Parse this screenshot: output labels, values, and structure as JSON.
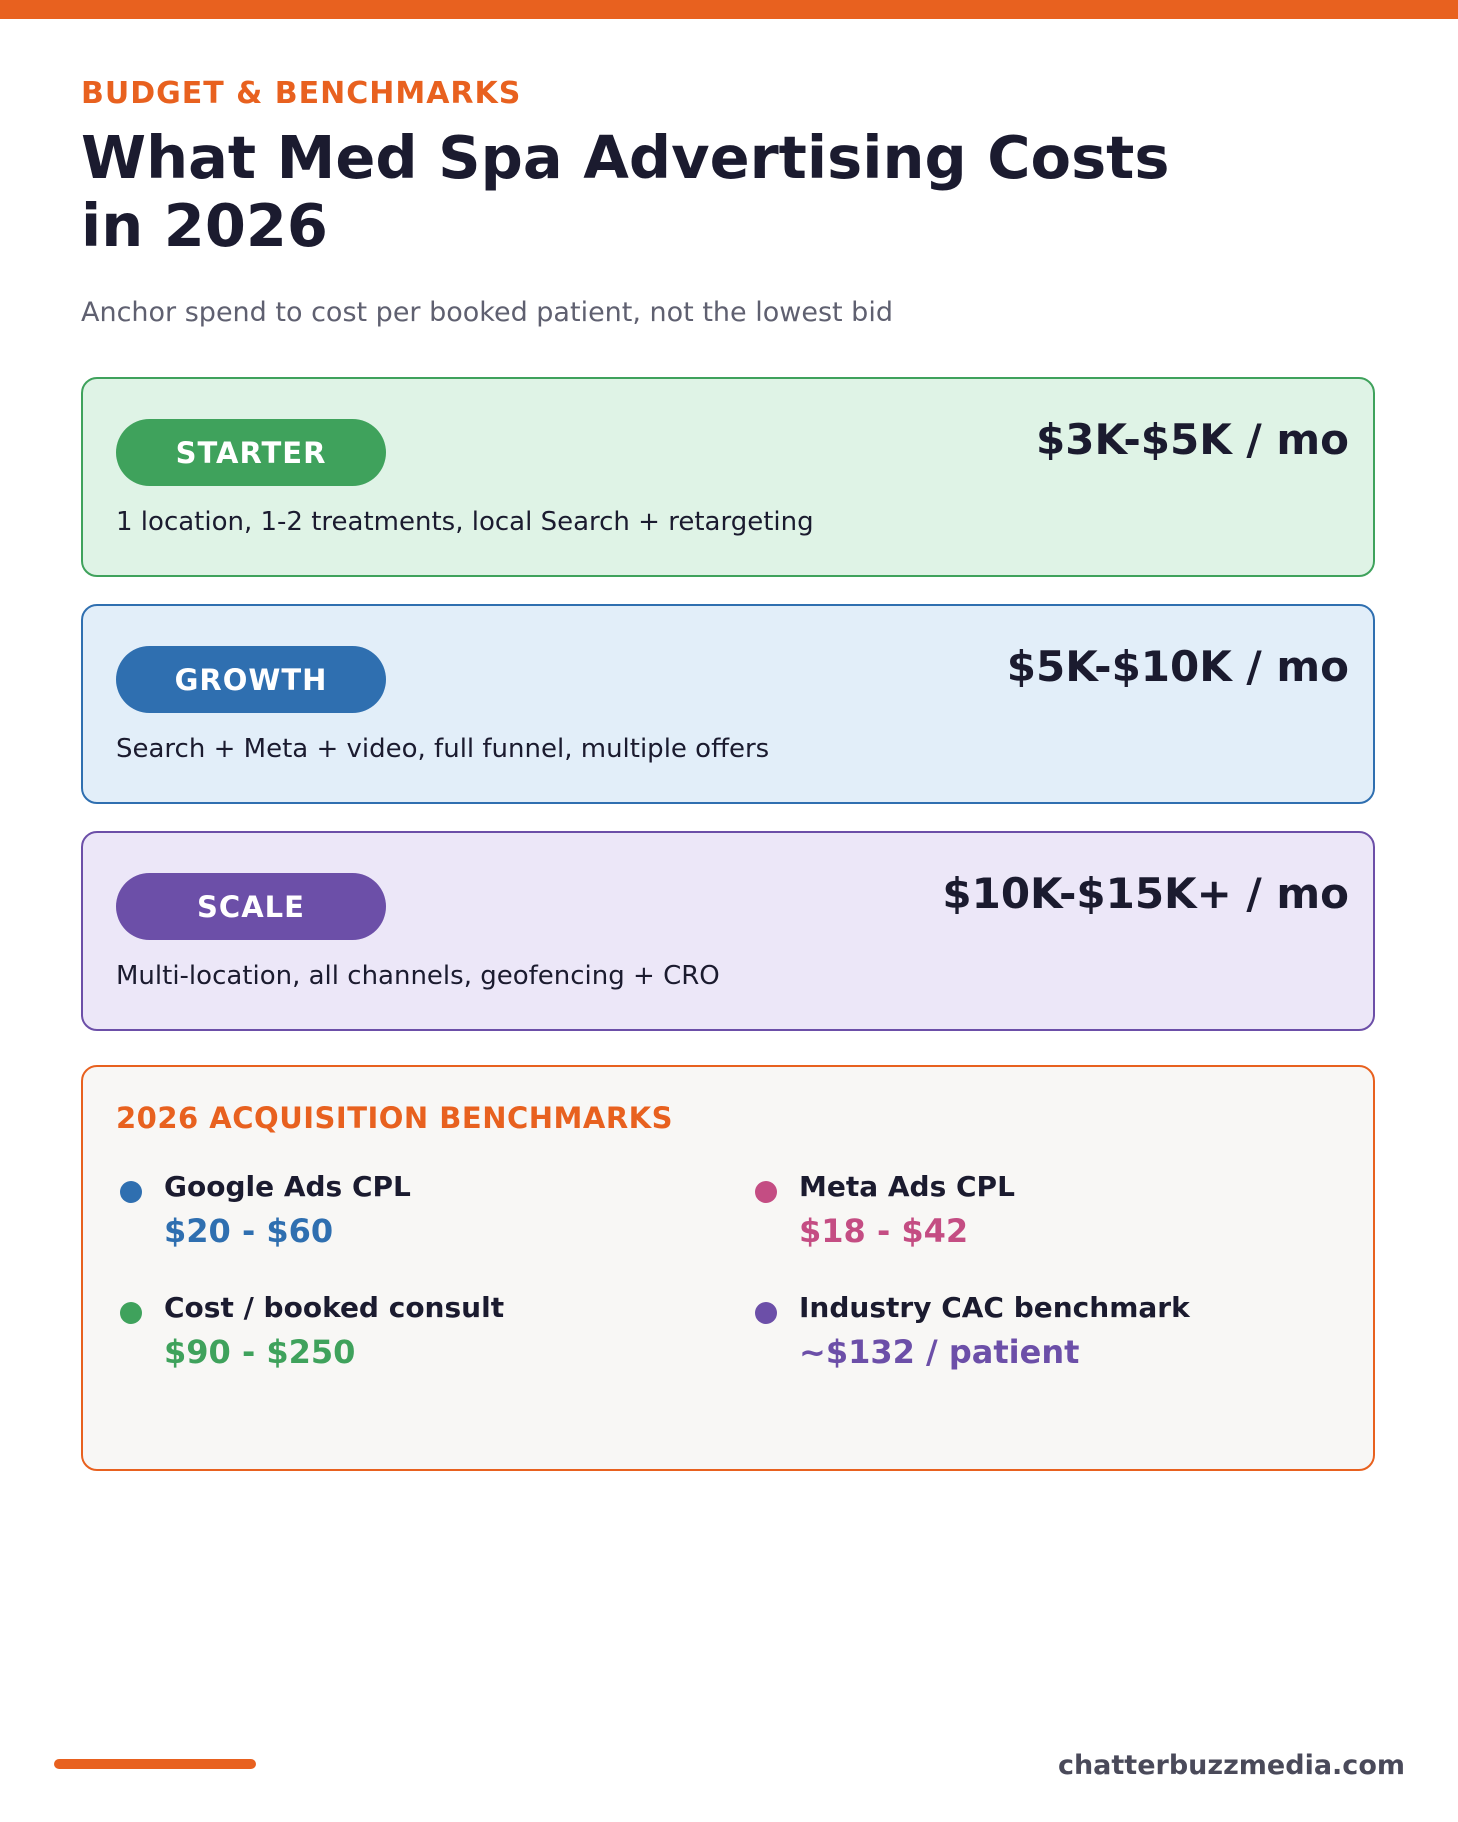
{
  "header": {
    "eyebrow": "BUDGET & BENCHMARKS",
    "title": "What Med Spa Advertising Costs in 2026",
    "subtitle": "Anchor spend to cost per booked patient, not the lowest bid",
    "accent_color": "#e8611f"
  },
  "tiers": [
    {
      "name": "STARTER",
      "price": "$3K-$5K / mo",
      "description": "1 location, 1-2 treatments, local Search + retargeting",
      "color": "#3fa25c",
      "bg_color": "#dff3e6"
    },
    {
      "name": "GROWTH",
      "price": "$5K-$10K / mo",
      "description": "Search + Meta + video, full funnel, multiple offers",
      "color": "#2f6fb0",
      "bg_color": "#e2eef9"
    },
    {
      "name": "SCALE",
      "price": "$10K-$15K+ / mo",
      "description": "Multi-location, all channels, geofencing + CRO",
      "color": "#6c4fa8",
      "bg_color": "#ece7f8"
    }
  ],
  "benchmarks": {
    "title": "2026 ACQUISITION BENCHMARKS",
    "items": [
      {
        "label": "Google Ads CPL",
        "value": "$20 - $60",
        "color": "#2f6fb0"
      },
      {
        "label": "Meta Ads CPL",
        "value": "$18 - $42",
        "color": "#c44d83"
      },
      {
        "label": "Cost / booked consult",
        "value": "$90 - $250",
        "color": "#3fa25c"
      },
      {
        "label": "Industry CAC benchmark",
        "value": "~$132 / patient",
        "color": "#6c4fa8"
      }
    ]
  },
  "footer": {
    "site": "chatterbuzzmedia.com"
  }
}
